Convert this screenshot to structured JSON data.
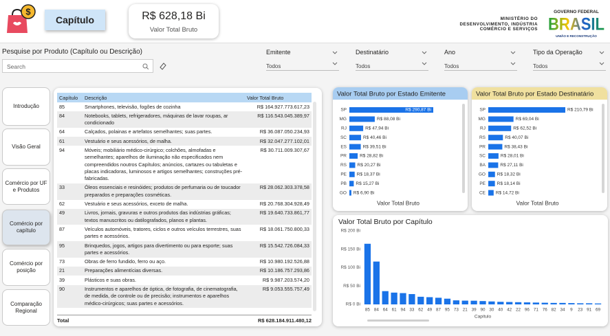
{
  "header": {
    "icon_text": "$",
    "title": "Capítulo",
    "kpi_value": "R$ 628,18 Bi",
    "kpi_label": "Valor Total Bruto",
    "ministry": [
      "MINISTÉRIO DO",
      "DESENVOLVIMENTO, INDÚSTRIA",
      "COMÉRCIO E SERVIÇOS"
    ],
    "government": "GOVERNO FEDERAL",
    "brand": "BRASIL",
    "slogan": "UNIÃO E RECONSTRUÇÃO"
  },
  "search": {
    "label": "Pesquise por Produto (Capítulo ou Descrição)",
    "placeholder": "Search"
  },
  "filters": [
    {
      "label": "Emitente",
      "value": "Todos"
    },
    {
      "label": "Destinatário",
      "value": "Todos"
    },
    {
      "label": "Ano",
      "value": "Todos"
    },
    {
      "label": "Tipo da Operação",
      "value": "Todos"
    }
  ],
  "nav": [
    "Introdução",
    "Visão Geral",
    "Comércio por UF e Produtos",
    "Comércio por capítulo",
    "Comércio por posição",
    "Comparação Regional"
  ],
  "table": {
    "columns": [
      "Capítulo",
      "Descrição",
      "Valor Total Bruto"
    ],
    "rows": [
      [
        "85",
        "Smartphones, televisão, fogões de cozinha",
        "R$ 164.927.773.617,23"
      ],
      [
        "84",
        "Notebooks, tablets, refrigeradores, máquinas de lavar roupas, ar condicionado",
        "R$ 116.543.045.389,97"
      ],
      [
        "64",
        "Calçados, polainas e artefatos semelhantes; suas partes.",
        "R$ 36.087.050.234,93"
      ],
      [
        "61",
        "Vestuário e seus acessórios, de malha.",
        "R$ 32.047.277.102,01"
      ],
      [
        "94",
        "Móveis; mobiliário médico-cirúrgico; colchões, almofadas e semelhantes; aparelhos de iluminação não especificados nem compreendidos noutros Capítulos; anúncios, cartazes ou tabuletas e placas indicadoras, luminosos e artigos semelhantes; construções pré-fabricadas.",
        "R$ 30.711.009.307,67"
      ],
      [
        "33",
        "Óleos essenciais e resinóides; produtos de perfumaria ou de toucador preparados e preparações cosméticas.",
        "R$ 28.062.303.378,58"
      ],
      [
        "62",
        "Vestuário e seus acessórios, exceto de malha.",
        "R$ 20.768.304.928,49"
      ],
      [
        "49",
        "Livros, jornais, gravuras e outros produtos das indústrias gráficas; textos manuscritos ou datilografados, planos e plantas.",
        "R$ 19.640.733.861,77"
      ],
      [
        "87",
        "Veículos automóveis, tratores, ciclos e outros veículos terrestres, suas partes e acessórios.",
        "R$ 18.061.750.800,33"
      ],
      [
        "95",
        "Brinquedos, jogos, artigos para divertimento ou para esporte; suas partes e acessórios.",
        "R$ 15.542.726.084,33"
      ],
      [
        "73",
        "Obras de ferro fundido, ferro ou aço.",
        "R$ 10.980.192.526,88"
      ],
      [
        "21",
        "Preparações alimentícias diversas.",
        "R$ 10.186.757.293,86"
      ],
      [
        "39",
        "Plásticos e suas obras.",
        "R$ 9.987.203.574,20"
      ],
      [
        "90",
        "Instrumentos e aparelhos de óptica, de fotografia, de cinematografia, de medida, de controle ou de precisão; instrumentos e aparelhos médico-cirúrgicos; suas partes e acessórios.",
        "R$ 9.053.555.757,49"
      ]
    ],
    "total": [
      "Total",
      "R$ 628.184.911.480,12"
    ]
  },
  "chart_data": [
    {
      "type": "hbar",
      "title": "Valor Total Bruto por Estado Emitente",
      "xlabel": "Valor Total Bruto",
      "color": "#1a73e8",
      "title_color": "#a8cdf1",
      "categories": [
        "SP",
        "MG",
        "RJ",
        "SC",
        "ES",
        "PR",
        "RS",
        "PE",
        "PB",
        "GO"
      ],
      "values": [
        290.87,
        88.08,
        47.94,
        40.46,
        39.51,
        28.82,
        20.27,
        18.37,
        15.27,
        6.9
      ],
      "value_labels": [
        "R$ 290,87 Bi",
        "R$ 88,08 Bi",
        "R$ 47,94 Bi",
        "R$ 40,46 Bi",
        "R$ 39,51 Bi",
        "R$ 28,82 Bi",
        "R$ 20,27 Bi",
        "R$ 18,37 Bi",
        "R$ 15,27 Bi",
        "R$ 6,90 Bi"
      ]
    },
    {
      "type": "hbar",
      "title": "Valor Total Bruto por Estado Destinatário",
      "xlabel": "Valor Total Bruto",
      "color": "#1a73e8",
      "title_color": "#f0e09f",
      "categories": [
        "SP",
        "MG",
        "RJ",
        "RS",
        "PR",
        "SC",
        "BA",
        "GO",
        "PE",
        "CE"
      ],
      "values": [
        210.79,
        69.04,
        62.52,
        40.07,
        38.43,
        28.01,
        27.11,
        18.32,
        18.14,
        14.72
      ],
      "value_labels": [
        "R$ 210,79 Bi",
        "R$ 69,04 Bi",
        "R$ 62,52 Bi",
        "R$ 40,07 Bi",
        "R$ 38,43 Bi",
        "R$ 28,01 Bi",
        "R$ 27,11 Bi",
        "R$ 18,32 Bi",
        "R$ 18,14 Bi",
        "R$ 14,72 Bi"
      ]
    },
    {
      "type": "bar",
      "title": "Valor Total Bruto por Capítulo",
      "xlabel": "Capítulo",
      "color": "#1a73e8",
      "categories": [
        "85",
        "84",
        "64",
        "61",
        "94",
        "33",
        "62",
        "49",
        "87",
        "95",
        "73",
        "21",
        "39",
        "90",
        "30",
        "40",
        "42",
        "22",
        "96",
        "71",
        "76",
        "82",
        "34",
        "9",
        "23",
        "91",
        "69"
      ],
      "values": [
        164.93,
        116.54,
        36.09,
        32.05,
        30.71,
        28.06,
        20.77,
        19.64,
        18.06,
        15.54,
        10.98,
        10.19,
        9.99,
        9.05,
        8,
        7,
        6.5,
        6,
        5.5,
        5,
        4.5,
        4,
        4,
        3.5,
        3,
        3,
        2.5
      ],
      "ylim": [
        0,
        200
      ],
      "yticks": [
        {
          "value": 0,
          "label": "R$ 0 Bi"
        },
        {
          "value": 50,
          "label": "R$ 50 Bi"
        },
        {
          "value": 100,
          "label": "R$ 100 Bi"
        },
        {
          "value": 150,
          "label": "R$ 150 Bi"
        },
        {
          "value": 200,
          "label": "R$ 200 Bi"
        }
      ]
    }
  ]
}
